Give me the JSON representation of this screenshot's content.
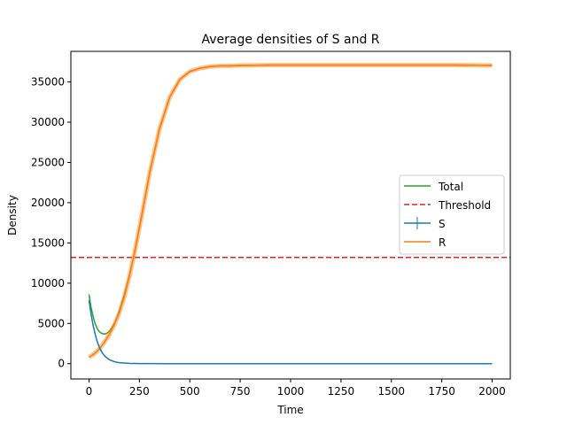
{
  "chart_data": {
    "type": "line",
    "title": "Average densities of S and R",
    "xlabel": "Time",
    "ylabel": "Density",
    "xlim": [
      -90,
      2090
    ],
    "ylim": [
      -1900,
      38800
    ],
    "xticks": [
      0,
      250,
      500,
      750,
      1000,
      1250,
      1500,
      1750,
      2000
    ],
    "yticks": [
      0,
      5000,
      10000,
      15000,
      20000,
      25000,
      30000,
      35000
    ],
    "grid": false,
    "legend_position": "center-right",
    "threshold": {
      "name": "Threshold",
      "value": 13200,
      "color": "#d62728",
      "dash": "dashed"
    },
    "series": [
      {
        "name": "Total",
        "color": "#2ca02c",
        "x": [
          0,
          10,
          20,
          30,
          40,
          50,
          60,
          70,
          80,
          90,
          100,
          110,
          120,
          130,
          140,
          150,
          175,
          200,
          225,
          250,
          275,
          300,
          350,
          400,
          450,
          500,
          550,
          600,
          650,
          700,
          750,
          800,
          900,
          1000,
          1250,
          1500,
          1750,
          2000
        ],
        "y": [
          8600,
          7000,
          5900,
          5000,
          4400,
          4000,
          3800,
          3700,
          3700,
          3800,
          4000,
          4300,
          4700,
          5200,
          5800,
          6500,
          8500,
          10900,
          13700,
          16900,
          20200,
          23600,
          29200,
          33100,
          35300,
          36300,
          36700,
          36900,
          37000,
          37000,
          37050,
          37050,
          37100,
          37100,
          37100,
          37100,
          37100,
          37050
        ]
      },
      {
        "name": "R",
        "color": "#ff7f0e",
        "x": [
          0,
          25,
          50,
          75,
          100,
          125,
          150,
          175,
          200,
          225,
          250,
          275,
          300,
          350,
          400,
          450,
          500,
          550,
          600,
          650,
          700,
          750,
          800,
          900,
          1000,
          1250,
          1500,
          1750,
          2000
        ],
        "y": [
          800,
          1200,
          1800,
          2600,
          3600,
          4800,
          6300,
          8300,
          10800,
          13700,
          16900,
          20200,
          23600,
          29200,
          33100,
          35300,
          36300,
          36700,
          36900,
          37000,
          37000,
          37050,
          37050,
          37100,
          37100,
          37100,
          37100,
          37100,
          37050
        ]
      },
      {
        "name": "S",
        "color": "#1f77b4",
        "x": [
          0,
          10,
          20,
          30,
          40,
          50,
          60,
          70,
          80,
          90,
          100,
          125,
          150,
          200,
          250,
          300,
          400,
          500,
          750,
          1000,
          1500,
          2000
        ],
        "y": [
          7900,
          6200,
          4800,
          3700,
          2800,
          2100,
          1600,
          1200,
          900,
          700,
          500,
          250,
          120,
          40,
          15,
          5,
          0,
          0,
          0,
          0,
          0,
          0
        ]
      }
    ]
  }
}
